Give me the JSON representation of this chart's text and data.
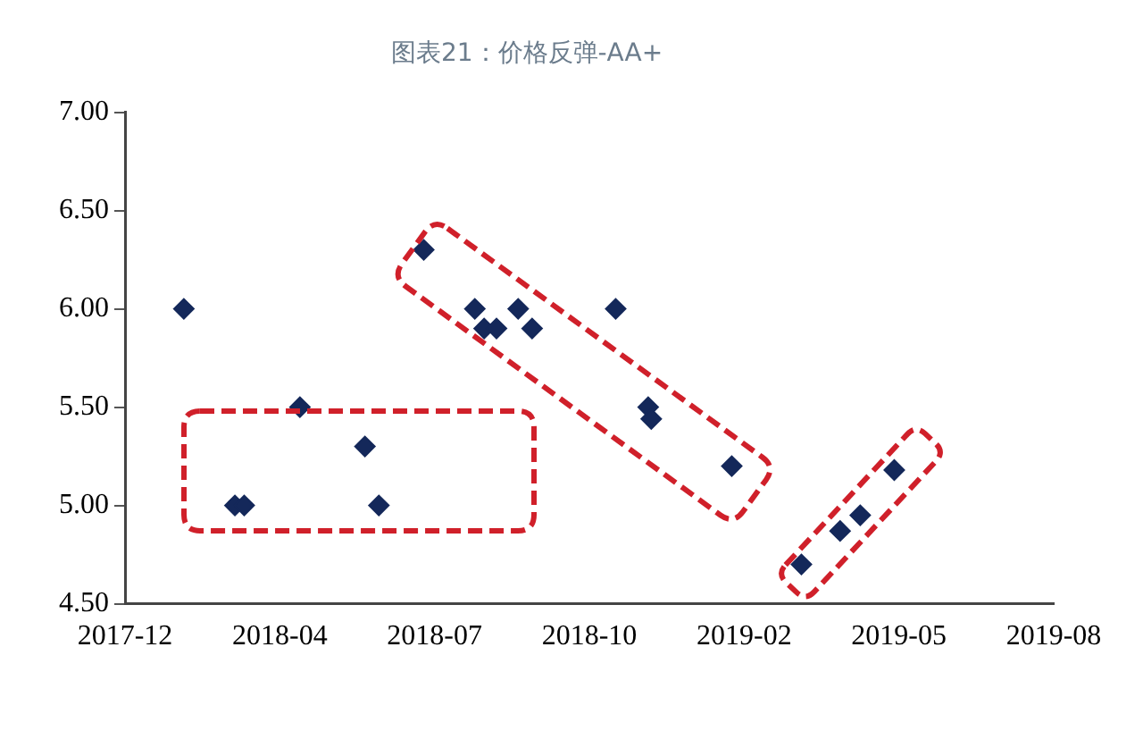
{
  "chart_data": {
    "type": "scatter",
    "title": "图表21：价格反弹-AA+",
    "x": [
      "2018-02-07",
      "2018-03-12",
      "2018-03-18",
      "2018-04-23",
      "2018-06-04",
      "2018-06-13",
      "2018-07-12",
      "2018-08-14",
      "2018-08-20",
      "2018-08-28",
      "2018-09-11",
      "2018-09-20",
      "2018-11-13",
      "2018-12-04",
      "2018-12-06",
      "2019-01-27",
      "2019-03-13",
      "2019-04-07",
      "2019-04-20",
      "2019-05-12"
    ],
    "series": [
      {
        "color": "#14285a",
        "values": [
          6.0,
          5.0,
          5.0,
          5.5,
          5.3,
          5.0,
          6.3,
          6.0,
          5.9,
          5.9,
          6.0,
          5.9,
          6.0,
          5.5,
          5.44,
          5.2,
          4.7,
          4.87,
          4.95,
          5.18
        ]
      }
    ],
    "xlim": [
      "2017-12-31",
      "2019-08-23"
    ],
    "xticks": [
      {
        "value": "2017-12-31",
        "label": "2017-12"
      },
      {
        "value": "2018-04-10",
        "label": "2018-04"
      },
      {
        "value": "2018-07-19",
        "label": "2018-07"
      },
      {
        "value": "2018-10-27",
        "label": "2018-10"
      },
      {
        "value": "2019-02-04",
        "label": "2019-02"
      },
      {
        "value": "2019-05-15",
        "label": "2019-05"
      },
      {
        "value": "2019-08-23",
        "label": "2019-08"
      }
    ],
    "ylim": [
      4.5,
      7.0
    ],
    "yticks": [
      {
        "value": 4.5,
        "label": "4.50"
      },
      {
        "value": 5.0,
        "label": "5.00"
      },
      {
        "value": 5.5,
        "label": "5.50"
      },
      {
        "value": 6.0,
        "label": "6.00"
      },
      {
        "value": 6.5,
        "label": "6.50"
      },
      {
        "value": 7.0,
        "label": "7.00"
      }
    ],
    "grid": false,
    "legend": false,
    "marker": "diamond"
  }
}
